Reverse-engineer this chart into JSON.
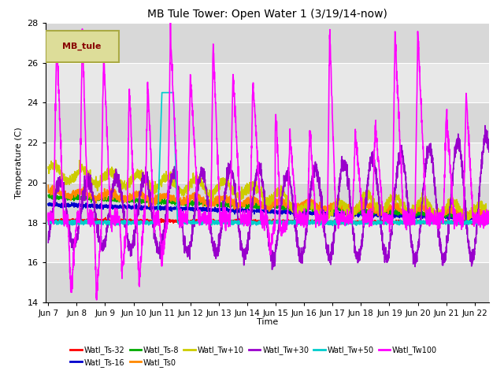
{
  "title": "MB Tule Tower: Open Water 1 (3/19/14-now)",
  "xlabel": "Time",
  "ylabel": "Temperature (C)",
  "ylim": [
    14,
    28
  ],
  "yticks": [
    14,
    16,
    18,
    20,
    22,
    24,
    26,
    28
  ],
  "xlim": [
    -0.1,
    15.5
  ],
  "xtick_labels": [
    "Jun 7",
    "Jun 8",
    "Jun 9",
    "Jun 10",
    "Jun 11",
    "Jun 12",
    "Jun 13",
    "Jun 14",
    "Jun 15",
    "Jun 16",
    "Jun 17",
    "Jun 18",
    "Jun 19",
    "Jun 20",
    "Jun 21",
    "Jun 22"
  ],
  "xtick_positions": [
    0,
    1,
    2,
    3,
    4,
    5,
    6,
    7,
    8,
    9,
    10,
    11,
    12,
    13,
    14,
    15
  ],
  "series": [
    {
      "name": "Watl_Ts-32",
      "color": "#ff0000",
      "lw": 1.2
    },
    {
      "name": "Watl_Ts-16",
      "color": "#0000cc",
      "lw": 1.2
    },
    {
      "name": "Watl_Ts-8",
      "color": "#00aa00",
      "lw": 1.2
    },
    {
      "name": "Watl_Ts0",
      "color": "#ff8800",
      "lw": 1.2
    },
    {
      "name": "Watl_Tw+10",
      "color": "#cccc00",
      "lw": 1.2
    },
    {
      "name": "Watl_Tw+30",
      "color": "#9900cc",
      "lw": 1.2
    },
    {
      "name": "Watl_Tw+50",
      "color": "#00cccc",
      "lw": 1.2
    },
    {
      "name": "Watl_Tw100",
      "color": "#ff00ff",
      "lw": 1.2
    }
  ],
  "bg_color": "#e8e8e8",
  "grid_color": "#ffffff",
  "legend_box_color": "#dddd99",
  "legend_box_edge_color": "#aaaa44",
  "legend_box_text": "MB_tule",
  "legend_box_text_color": "#880000"
}
